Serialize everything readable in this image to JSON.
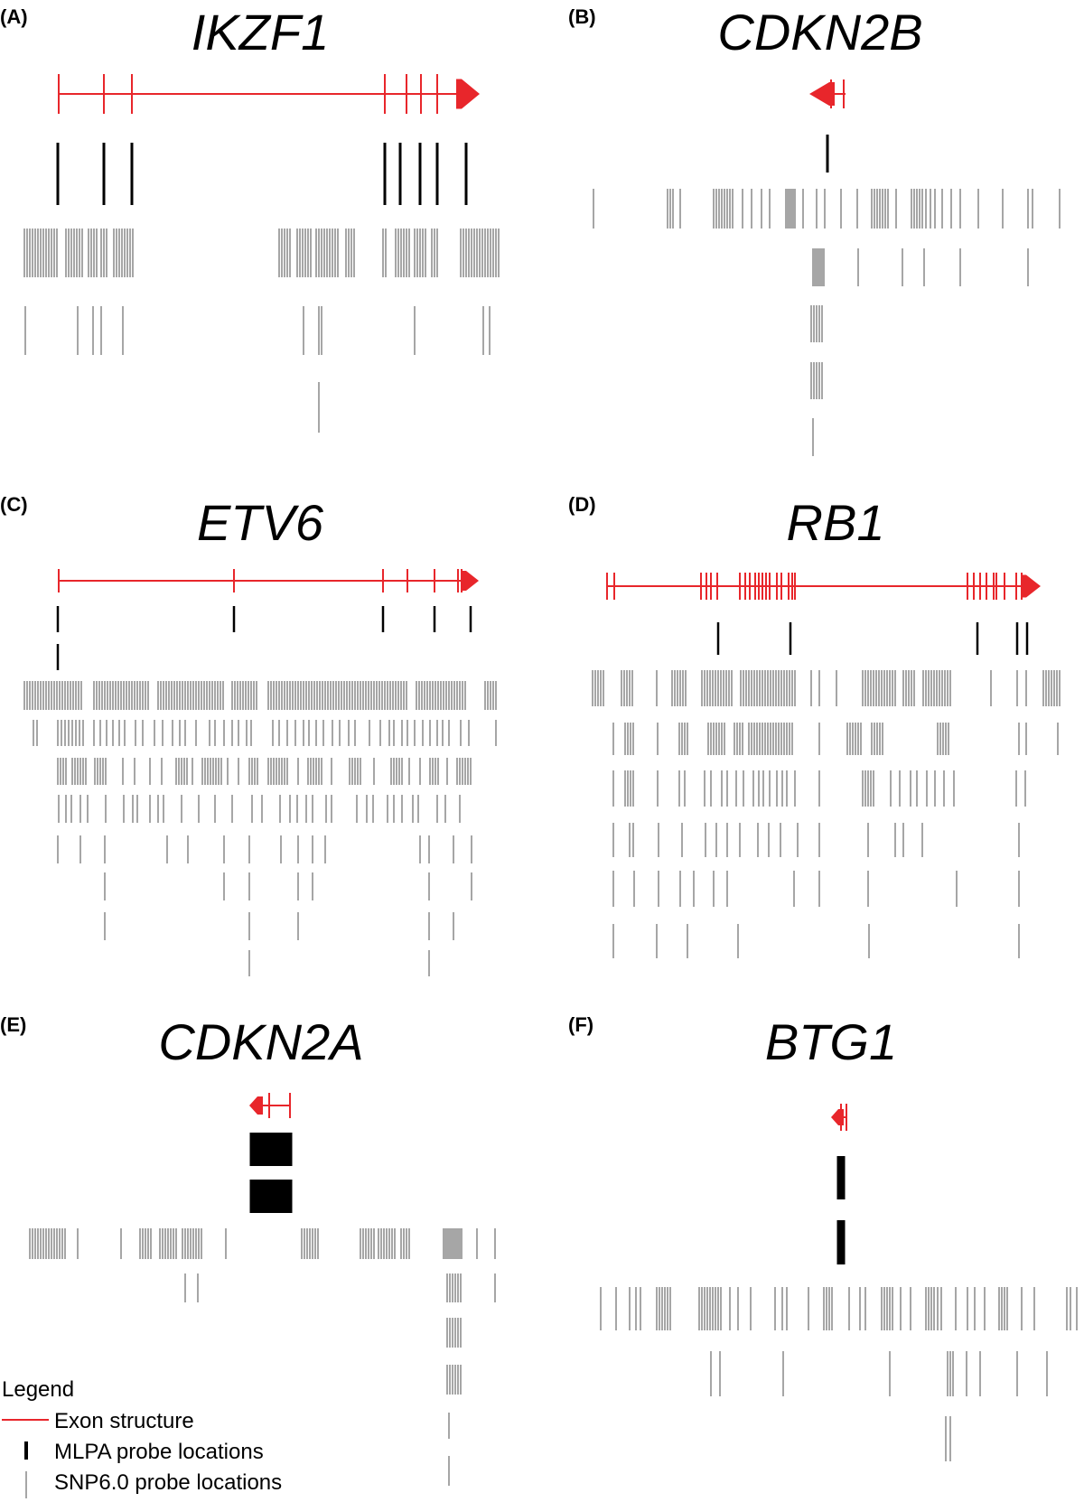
{
  "figure": {
    "panels": [
      {
        "id": "A",
        "label": "(A)",
        "gene": "IKZF1",
        "strand": "+"
      },
      {
        "id": "B",
        "label": "(B)",
        "gene": "CDKN2B",
        "strand": "-"
      },
      {
        "id": "C",
        "label": "(C)",
        "gene": "ETV6",
        "strand": "+"
      },
      {
        "id": "D",
        "label": "(D)",
        "gene": "RB1",
        "strand": "+"
      },
      {
        "id": "E",
        "label": "(E)",
        "gene": "CDKN2A",
        "strand": "-"
      },
      {
        "id": "F",
        "label": "(F)",
        "gene": "BTG1",
        "strand": "-"
      }
    ]
  },
  "legend": {
    "title": "Legend",
    "exon": "Exon structure",
    "mlpa": "MLPA probe locations",
    "snp": "SNP6.0 probe locations"
  },
  "colors": {
    "exon": "#e8262b",
    "mlpa": "#000000",
    "snp": "#a6a6a6",
    "background": "#ffffff"
  }
}
